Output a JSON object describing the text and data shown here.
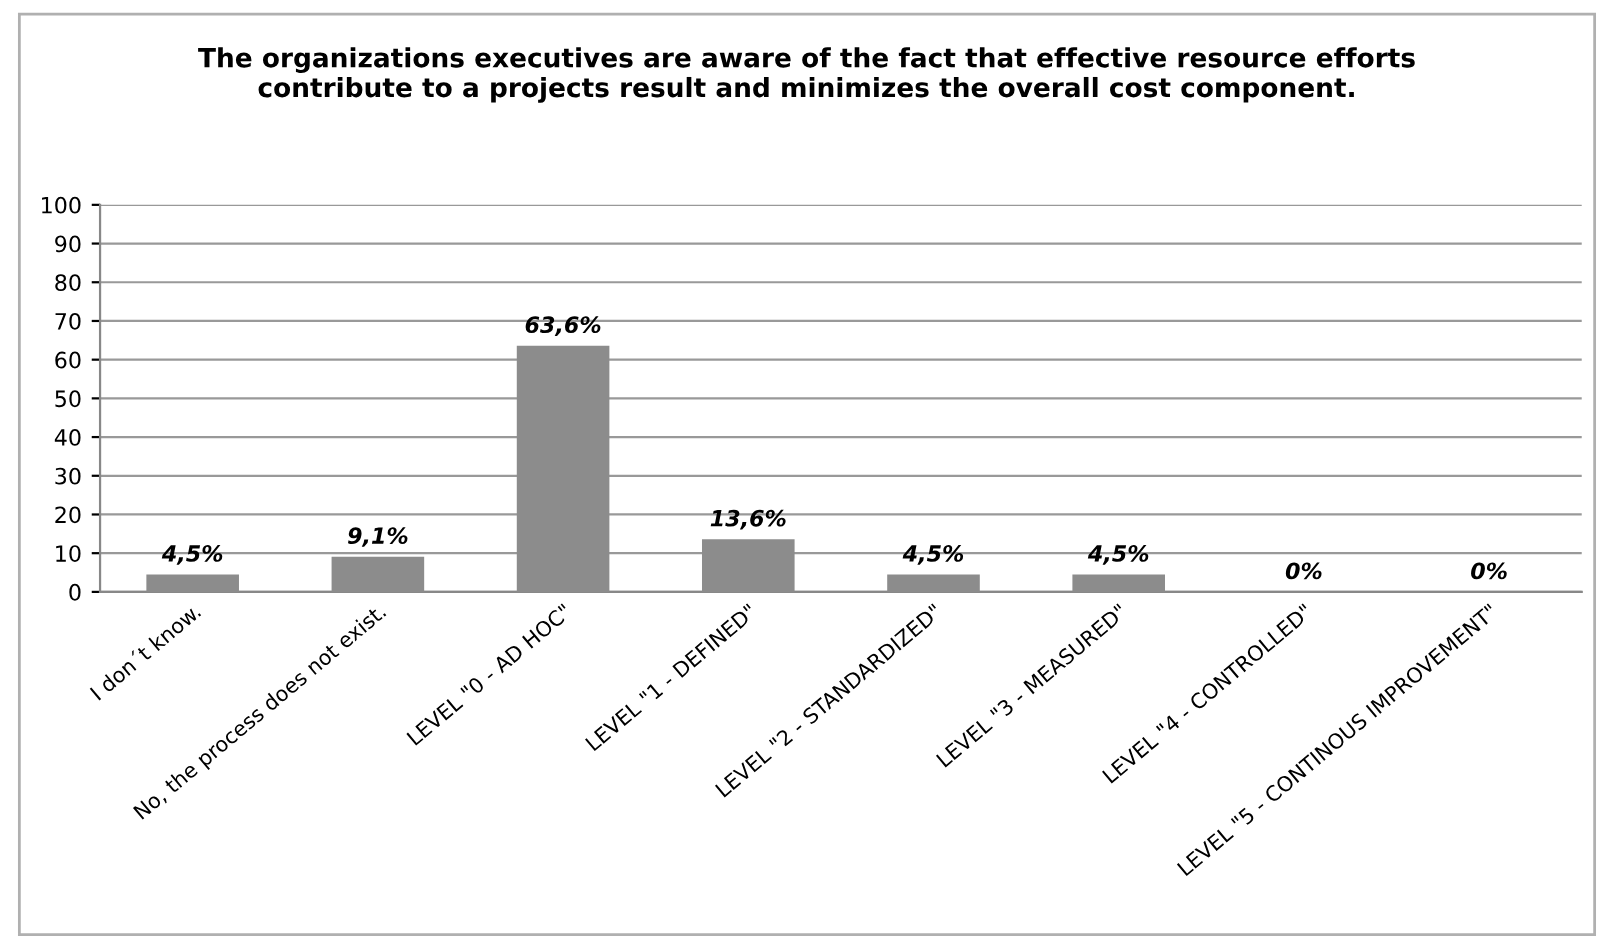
{
  "chart_data": {
    "type": "bar",
    "title": "The organizations executives are aware of the fact that effective resource efforts\ncontribute to a projects result and minimizes the overall cost component.",
    "categories": [
      "I don´t know.",
      "No, the process does not exist.",
      "LEVEL \"0 - AD HOC\"",
      "LEVEL \"1 - DEFINED\"",
      "LEVEL \"2 - STANDARDIZED\"",
      "LEVEL \"3 - MEASURED\"",
      "LEVEL \"4 - CONTROLLED\"",
      "LEVEL \"5 - CONTINOUS IMPROVEMENT\""
    ],
    "values": [
      4.5,
      9.1,
      63.6,
      13.6,
      4.5,
      4.5,
      0,
      0
    ],
    "value_labels": [
      "4,5%",
      "9,1%",
      "63,6%",
      "13,6%",
      "4,5%",
      "4,5%",
      "0%",
      "0%"
    ],
    "color": "#8c8c8c",
    "ylim": [
      0,
      100
    ],
    "yticks": [
      0,
      10,
      20,
      30,
      40,
      50,
      60,
      70,
      80,
      90,
      100
    ],
    "grid": "y"
  }
}
